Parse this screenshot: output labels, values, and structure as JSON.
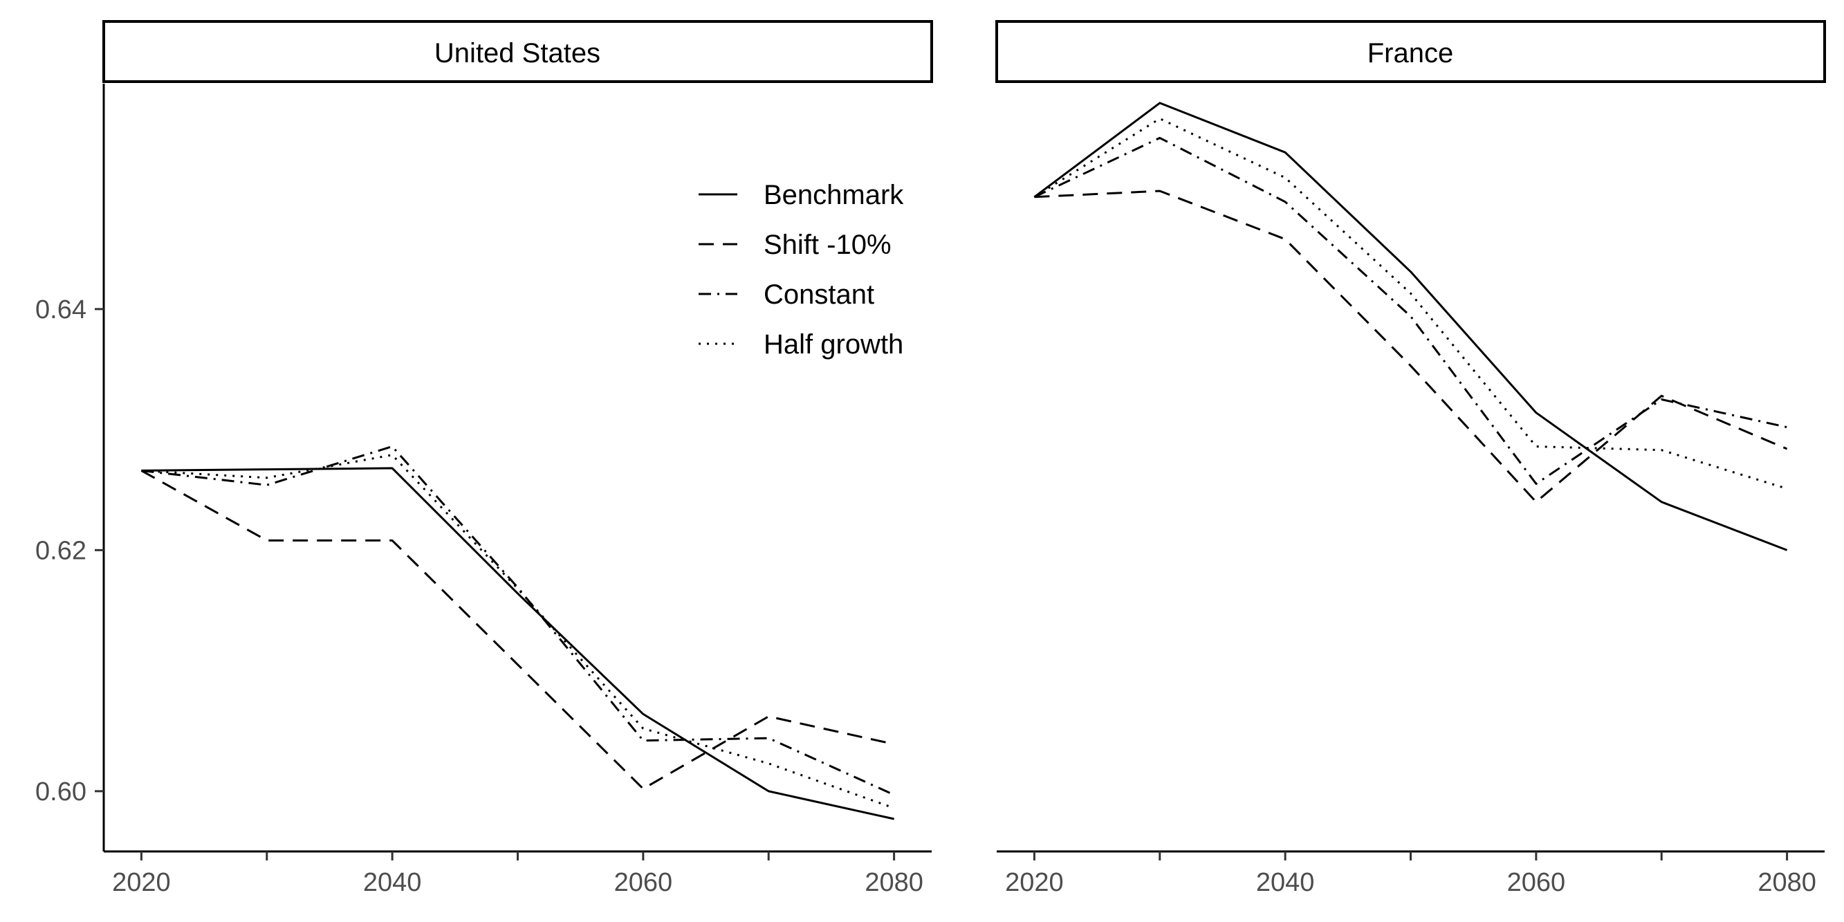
{
  "chart_data": {
    "type": "line",
    "title": "",
    "xlabel": "",
    "ylabel": "",
    "x": [
      2020,
      2030,
      2040,
      2050,
      2060,
      2070,
      2080
    ],
    "x_ticks": [
      2020,
      2040,
      2060,
      2080
    ],
    "x_tick_labels": [
      "2020",
      "2040",
      "2060",
      "2080"
    ],
    "y_ticks": [
      0.6,
      0.62,
      0.64
    ],
    "y_tick_labels": [
      "0.60",
      "0.62",
      "0.64"
    ],
    "xlim": [
      2017,
      2083
    ],
    "ylim": [
      0.595,
      0.6587
    ],
    "grid": false,
    "legend": {
      "placement": "top-right",
      "panel": "United States",
      "entries": [
        "Benchmark",
        "Shift -10%",
        "Constant",
        "Half growth"
      ]
    },
    "line_styles": {
      "Benchmark": "solid",
      "Shift -10%": "dashed",
      "Constant": "dash-dot",
      "Half growth": "dotted"
    },
    "panels": [
      {
        "strip": "United States",
        "series": [
          {
            "name": "Benchmark",
            "values": [
              0.6266,
              0.6267,
              0.6268,
              0.6164,
              0.6064,
              0.6,
              0.5977
            ]
          },
          {
            "name": "Shift -10%",
            "values": [
              0.6266,
              0.6208,
              0.6208,
              0.6105,
              0.6002,
              0.6062,
              0.6039
            ]
          },
          {
            "name": "Constant",
            "values": [
              0.6266,
              0.6254,
              0.6286,
              0.6169,
              0.6042,
              0.6044,
              0.5997
            ]
          },
          {
            "name": "Half growth",
            "values": [
              0.6266,
              0.626,
              0.6279,
              0.6168,
              0.6052,
              0.6023,
              0.5986
            ]
          }
        ]
      },
      {
        "strip": "France",
        "series": [
          {
            "name": "Benchmark",
            "values": [
              0.6493,
              0.6571,
              0.653,
              0.6431,
              0.6314,
              0.624,
              0.62
            ]
          },
          {
            "name": "Shift -10%",
            "values": [
              0.6493,
              0.6498,
              0.6458,
              0.6353,
              0.624,
              0.6328,
              0.6284
            ]
          },
          {
            "name": "Constant",
            "values": [
              0.6493,
              0.6542,
              0.6489,
              0.6394,
              0.6255,
              0.6325,
              0.6302
            ]
          },
          {
            "name": "Half growth",
            "values": [
              0.6493,
              0.6558,
              0.6509,
              0.6413,
              0.6286,
              0.6283,
              0.6251
            ]
          }
        ]
      }
    ]
  }
}
